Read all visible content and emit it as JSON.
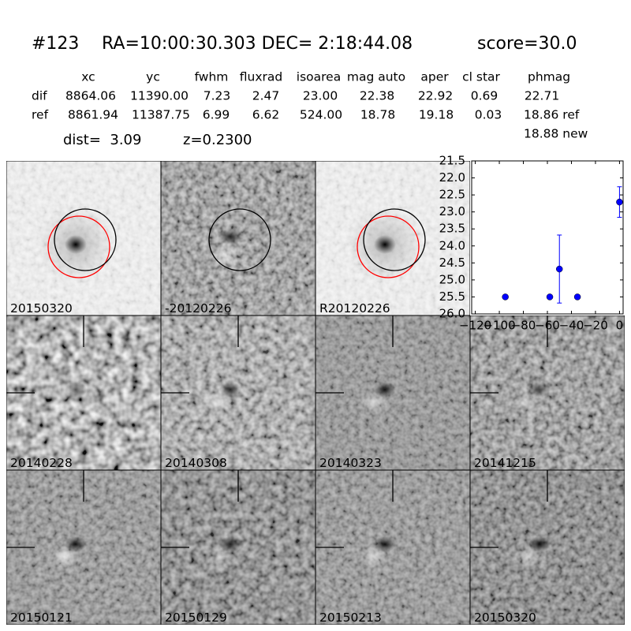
{
  "header": {
    "id": "#123",
    "coords": "RA=10:00:30.303 DEC= 2:18:44.08",
    "score": "score=30.0"
  },
  "table": {
    "columns": [
      "xc",
      "yc",
      "fwhm",
      "fluxrad",
      "isoarea",
      "mag auto",
      "aper",
      "cl star",
      "phmag"
    ],
    "rows": [
      {
        "label": "dif",
        "cells": [
          "8864.06",
          "11390.00",
          "7.23",
          "2.47",
          "23.00",
          "22.38",
          "22.92",
          "0.69",
          "22.71"
        ]
      },
      {
        "label": "ref",
        "cells": [
          "8861.94",
          "11387.75",
          "6.99",
          "6.62",
          "524.00",
          "18.78",
          "19.18",
          "0.03",
          "18.86 ref"
        ]
      }
    ],
    "extra": "18.88 new"
  },
  "dist": "dist=  3.09",
  "redshift": "z=0.2300",
  "panels": [
    {
      "label": "20150320"
    },
    {
      "label": "-20120226"
    },
    {
      "label": "R20120226"
    },
    {
      "label": "20140228"
    },
    {
      "label": "20140308"
    },
    {
      "label": "20140323"
    },
    {
      "label": "20141215"
    },
    {
      "label": "20150121"
    },
    {
      "label": "20150129"
    },
    {
      "label": "20150213"
    },
    {
      "label": "20150320",
      "color": "#ff0000"
    }
  ],
  "chart_data": {
    "type": "scatter",
    "color": "#0000ff",
    "x": [
      -95,
      -58,
      -50,
      -35,
      0
    ],
    "values": [
      25.5,
      25.5,
      24.68,
      25.5,
      22.71
    ],
    "errors": [
      0.05,
      0.05,
      1.0,
      0.05,
      0.45
    ],
    "xlim": [
      -123,
      3
    ],
    "ylim": [
      21.5,
      26
    ],
    "y_inverted": true,
    "xticks": [
      {
        "value": -120,
        "label": "−120"
      },
      {
        "value": -100,
        "label": "−100"
      },
      {
        "value": -80,
        "label": "−80"
      },
      {
        "value": -60,
        "label": "−60"
      },
      {
        "value": -40,
        "label": "−40"
      },
      {
        "value": -20,
        "label": "−20"
      },
      0
    ],
    "yticks": [
      21.5,
      {
        "value": 22,
        "label": "22.0"
      },
      22.5,
      {
        "value": 23,
        "label": "23.0"
      },
      23.5,
      {
        "value": 24,
        "label": "24.0"
      },
      24.5,
      {
        "value": 25,
        "label": "25.0"
      },
      25.5,
      {
        "value": 26,
        "label": "26.0"
      }
    ]
  }
}
